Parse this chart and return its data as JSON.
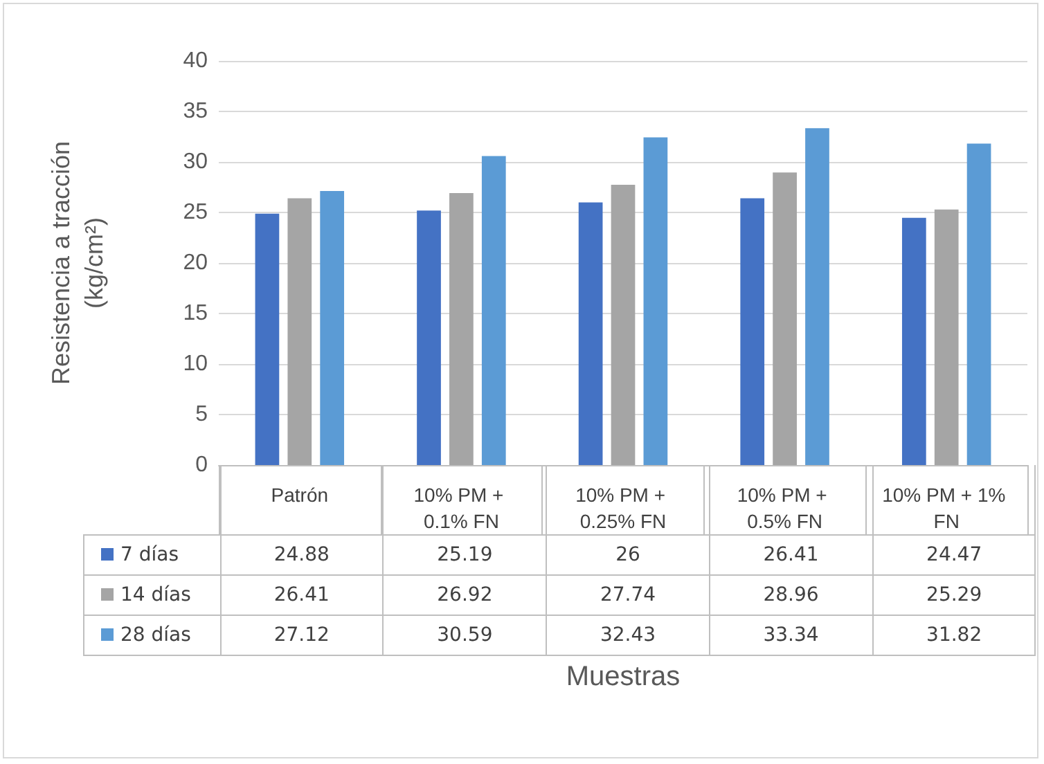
{
  "chart_data": {
    "type": "bar",
    "xlabel": "Muestras",
    "ylabel": "Resistencia a tracción (kg/cm²)",
    "categories": [
      "Patrón",
      "10% PM + 0.1% FN",
      "10% PM + 0.25% FN",
      "10% PM + 0.5% FN",
      "10% PM + 1% FN"
    ],
    "series": [
      {
        "name": "7 días",
        "color": "#4472c4",
        "values": [
          24.88,
          25.19,
          26,
          26.41,
          24.47
        ]
      },
      {
        "name": "14 días",
        "color": "#a5a5a5",
        "values": [
          26.41,
          26.92,
          27.74,
          28.96,
          25.29
        ]
      },
      {
        "name": "28 días",
        "color": "#5b9bd5",
        "values": [
          27.12,
          30.59,
          32.43,
          33.34,
          31.82
        ]
      }
    ],
    "ylim": [
      0,
      40
    ],
    "yticks": [
      0,
      5,
      10,
      15,
      20,
      25,
      30,
      35,
      40
    ],
    "grid": "y",
    "legend": "bottom left",
    "data_labels": true
  }
}
